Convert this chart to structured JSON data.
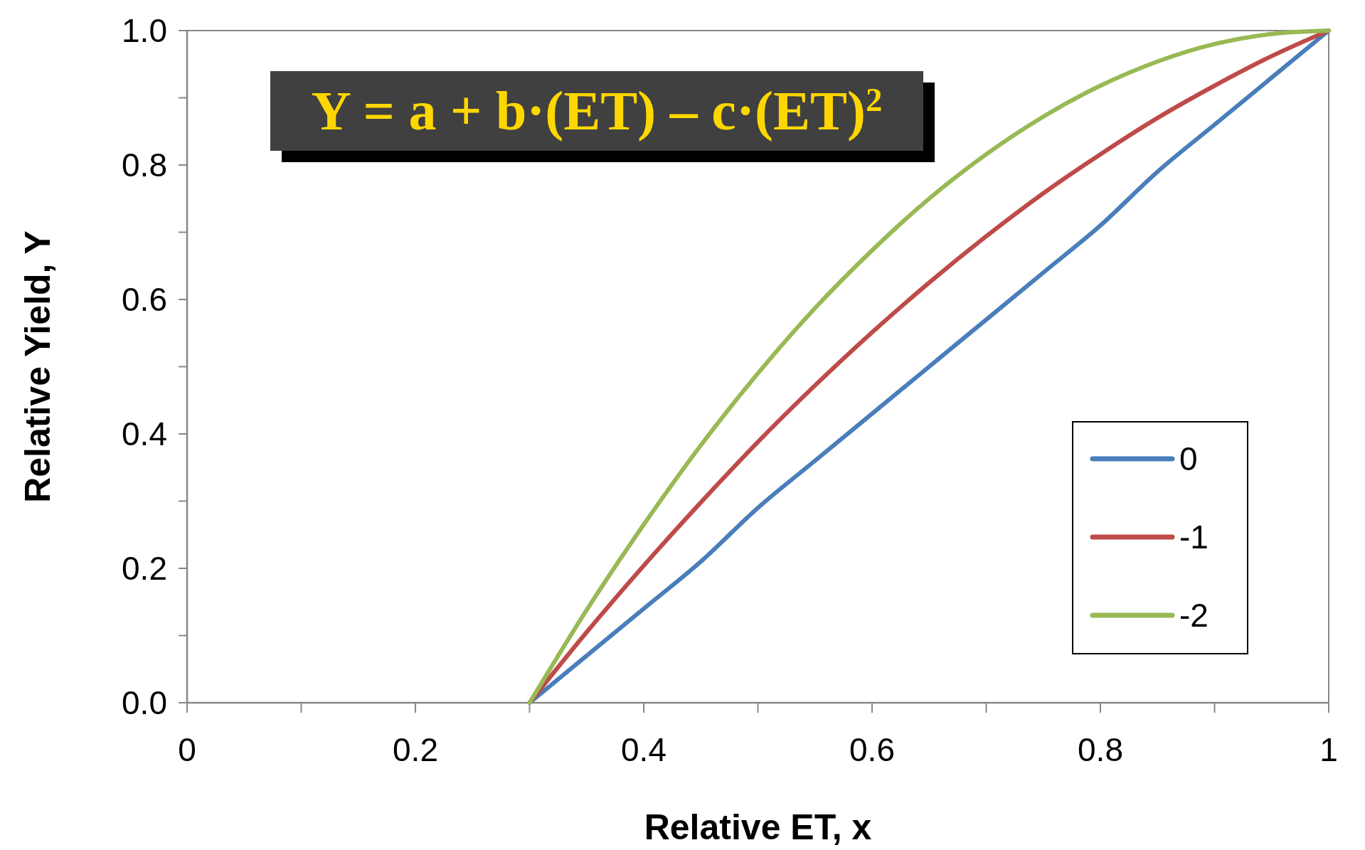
{
  "chart_data": {
    "type": "line",
    "xlabel": "Relative ET, x",
    "ylabel": "Relative Yield, Y",
    "annotations": [
      "Y = a + b·(ET) – c·(ET)$^{2}$"
    ],
    "x": [
      0.3,
      0.35,
      0.4,
      0.45,
      0.5,
      0.55,
      0.6,
      0.65,
      0.7,
      0.75,
      0.8,
      0.85,
      0.9,
      0.95,
      1.0
    ],
    "series": [
      {
        "name": "0",
        "color": "#4a7ebb",
        "values": [
          0,
          0.07,
          0.14,
          0.21,
          0.29,
          0.36,
          0.43,
          0.5,
          0.57,
          0.64,
          0.71,
          0.79,
          0.86,
          0.93,
          1
        ]
      },
      {
        "name": "-1",
        "color": "#be4b48",
        "values": [
          0,
          0.105,
          0.204,
          0.298,
          0.388,
          0.472,
          0.551,
          0.625,
          0.694,
          0.758,
          0.816,
          0.87,
          0.918,
          0.962,
          1
        ]
      },
      {
        "name": "-2",
        "color": "#98b954",
        "values": [
          0,
          0.138,
          0.265,
          0.383,
          0.49,
          0.587,
          0.673,
          0.75,
          0.816,
          0.872,
          0.918,
          0.954,
          0.98,
          0.995,
          1
        ]
      }
    ],
    "xlim": [
      0,
      1
    ],
    "ylim": [
      0,
      1
    ],
    "xticks": [
      0,
      {
        "value": 0.1,
        "label": null
      },
      0.2,
      {
        "value": 0.3,
        "label": null
      },
      0.4,
      {
        "value": 0.5,
        "label": null
      },
      0.6,
      {
        "value": 0.7,
        "label": null
      },
      0.8,
      {
        "value": 0.9,
        "label": null
      },
      1
    ],
    "yticks": [
      {
        "value": 0,
        "label": "0.0"
      },
      {
        "value": 0.1,
        "label": null
      },
      {
        "value": 0.2,
        "label": "0.2"
      },
      {
        "value": 0.3,
        "label": null
      },
      {
        "value": 0.4,
        "label": "0.4"
      },
      {
        "value": 0.5,
        "label": null
      },
      {
        "value": 0.6,
        "label": "0.6"
      },
      {
        "value": 0.7,
        "label": null
      },
      {
        "value": 0.8,
        "label": "0.8"
      },
      {
        "value": 0.9,
        "label": null
      },
      {
        "value": 1,
        "label": "1.0"
      }
    ],
    "grid": false,
    "legend": "right",
    "marker": "none",
    "line_style": "solid"
  }
}
